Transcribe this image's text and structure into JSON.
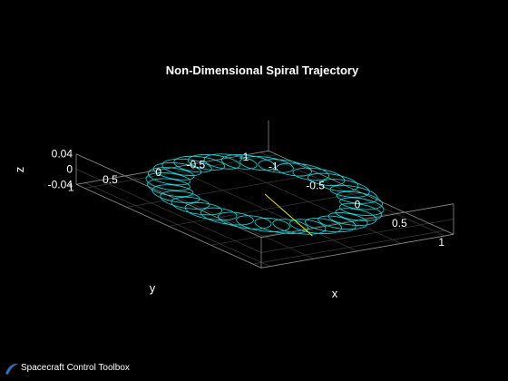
{
  "chart_data": {
    "type": "line",
    "title": "Non-Dimensional Spiral Trajectory",
    "xlabel": "x",
    "ylabel": "y",
    "zlabel": "z",
    "xlim": [
      -1.1,
      1.1
    ],
    "ylim": [
      -1.1,
      1.1
    ],
    "zlim": [
      -0.04,
      0.04
    ],
    "x_ticks": [
      "-1",
      "-0.5",
      "0",
      "0.5",
      "1"
    ],
    "y_ticks": [
      "-1",
      "-0.5",
      "0",
      "0.5",
      "1"
    ],
    "z_ticks": [
      "-0.04",
      "0",
      "0.04"
    ],
    "grid": true,
    "series": [
      {
        "color": "#00e5e5",
        "curve": "epicycloid-ring",
        "mean_radius": 0.8,
        "loop_radius": 0.18,
        "loops": 33
      },
      {
        "color": "#e6e600",
        "curve": "segment",
        "x": [
          0.0,
          0.95
        ],
        "y": [
          0.0,
          0.37
        ],
        "z": [
          0.0,
          0.0
        ]
      }
    ]
  },
  "footer": {
    "toolbox_label": "Spacecraft Control Toolbox",
    "logo_icon": "swoosh-logo-icon",
    "logo_color": "#2f6db5"
  }
}
